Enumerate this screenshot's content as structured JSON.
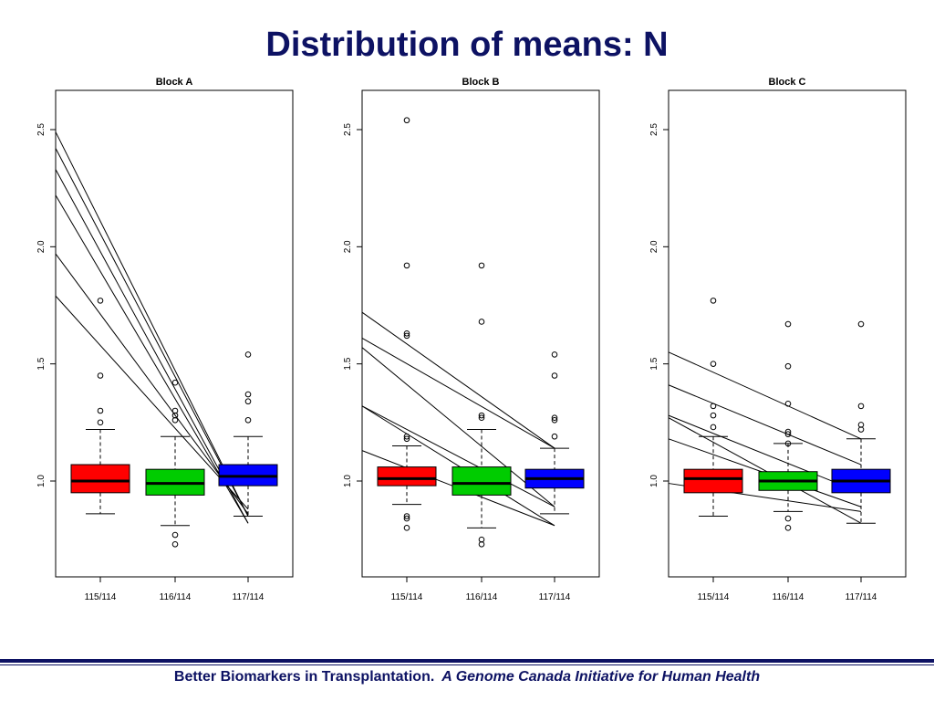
{
  "slide": {
    "title": "Distribution of means: N",
    "footer_left": "Better Biomarkers in Transplantation.",
    "footer_right": "A Genome Canada Initiative for Human Health",
    "title_color": "#0d1263"
  },
  "chart_data": [
    {
      "type": "boxplot",
      "title": "Block A",
      "categories": [
        "115/114",
        "116/114",
        "117/114"
      ],
      "colors": [
        "#ff0000",
        "#00cc00",
        "#0000ff"
      ],
      "ylim": [
        0.6,
        2.67
      ],
      "yticks": [
        "1.0",
        "1.5",
        "2.0",
        "2.5"
      ],
      "boxes": [
        {
          "q1": 0.95,
          "median": 1.0,
          "q3": 1.07,
          "whisker_low": 0.86,
          "whisker_high": 1.22,
          "outliers": [
            1.77,
            1.45,
            1.3,
            1.25
          ]
        },
        {
          "q1": 0.94,
          "median": 0.99,
          "q3": 1.05,
          "whisker_low": 0.81,
          "whisker_high": 1.19,
          "outliers": [
            1.42,
            1.3,
            1.28,
            1.26,
            0.77,
            0.73
          ]
        },
        {
          "q1": 0.98,
          "median": 1.02,
          "q3": 1.07,
          "whisker_low": 0.85,
          "whisker_high": 1.19,
          "outliers": [
            1.54,
            1.37,
            1.34,
            1.26
          ]
        }
      ],
      "lines": [
        {
          "y_left": 2.49,
          "y_right": 0.85
        },
        {
          "y_left": 2.42,
          "y_right": 0.85
        },
        {
          "y_left": 2.33,
          "y_right": 0.82
        },
        {
          "y_left": 2.22,
          "y_right": 0.82
        },
        {
          "y_left": 1.97,
          "y_right": 0.86
        },
        {
          "y_left": 1.79,
          "y_right": 0.88
        }
      ]
    },
    {
      "type": "boxplot",
      "title": "Block B",
      "categories": [
        "115/114",
        "116/114",
        "117/114"
      ],
      "colors": [
        "#ff0000",
        "#00cc00",
        "#0000ff"
      ],
      "ylim": [
        0.6,
        2.67
      ],
      "yticks": [
        "1.0",
        "1.5",
        "2.0",
        "2.5"
      ],
      "boxes": [
        {
          "q1": 0.98,
          "median": 1.01,
          "q3": 1.06,
          "whisker_low": 0.9,
          "whisker_high": 1.15,
          "outliers": [
            2.54,
            1.92,
            1.63,
            1.62,
            1.19,
            1.18,
            0.85,
            0.84,
            0.8
          ]
        },
        {
          "q1": 0.94,
          "median": 0.99,
          "q3": 1.06,
          "whisker_low": 0.8,
          "whisker_high": 1.22,
          "outliers": [
            1.92,
            1.68,
            1.28,
            1.27,
            0.75,
            0.73
          ]
        },
        {
          "q1": 0.97,
          "median": 1.01,
          "q3": 1.05,
          "whisker_low": 0.86,
          "whisker_high": 1.14,
          "outliers": [
            1.54,
            1.45,
            1.27,
            1.26,
            1.19
          ]
        }
      ],
      "lines": [
        {
          "y_left": 1.72,
          "y_right": 1.14
        },
        {
          "y_left": 1.61,
          "y_right": 1.14
        },
        {
          "y_left": 1.57,
          "y_right": 0.89
        },
        {
          "y_left": 1.32,
          "y_right": 0.89
        },
        {
          "y_left": 1.32,
          "y_right": 0.81
        },
        {
          "y_left": 1.13,
          "y_right": 0.81
        }
      ]
    },
    {
      "type": "boxplot",
      "title": "Block C",
      "categories": [
        "115/114",
        "116/114",
        "117/114"
      ],
      "colors": [
        "#ff0000",
        "#00cc00",
        "#0000ff"
      ],
      "ylim": [
        0.6,
        2.67
      ],
      "yticks": [
        "1.0",
        "1.5",
        "2.0",
        "2.5"
      ],
      "boxes": [
        {
          "q1": 0.95,
          "median": 1.01,
          "q3": 1.05,
          "whisker_low": 0.85,
          "whisker_high": 1.19,
          "outliers": [
            1.77,
            1.5,
            1.32,
            1.28,
            1.23
          ]
        },
        {
          "q1": 0.96,
          "median": 1.0,
          "q3": 1.04,
          "whisker_low": 0.87,
          "whisker_high": 1.16,
          "outliers": [
            1.67,
            1.49,
            1.33,
            1.21,
            1.2,
            1.16,
            0.84,
            0.8
          ]
        },
        {
          "q1": 0.95,
          "median": 1.0,
          "q3": 1.05,
          "whisker_low": 0.82,
          "whisker_high": 1.18,
          "outliers": [
            1.67,
            1.32,
            1.24,
            1.22
          ]
        }
      ],
      "lines": [
        {
          "y_left": 1.55,
          "y_right": 1.18
        },
        {
          "y_left": 1.41,
          "y_right": 1.07
        },
        {
          "y_left": 1.28,
          "y_right": 0.95
        },
        {
          "y_left": 1.27,
          "y_right": 0.82
        },
        {
          "y_left": 1.18,
          "y_right": 0.89
        },
        {
          "y_left": 0.99,
          "y_right": 0.87
        }
      ]
    }
  ]
}
